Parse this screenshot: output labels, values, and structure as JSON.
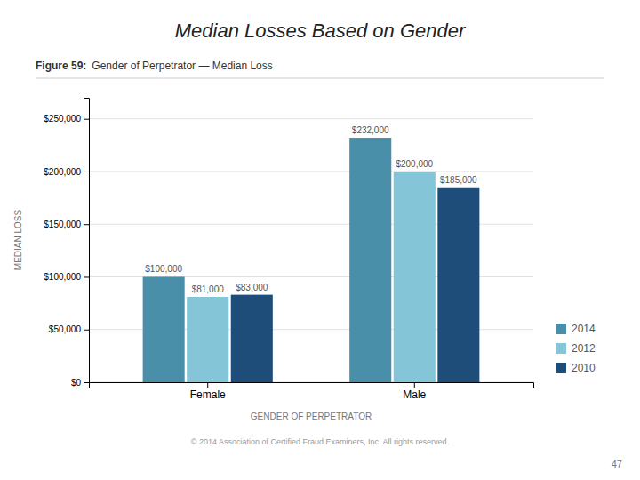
{
  "chart_data": {
    "type": "bar",
    "title": "Median Losses Based on Gender",
    "annotations": [
      "Figure 59:",
      "Gender of Perpetrator — Median Loss",
      "47",
      "© 2014 Association of Certified Fraud Examiners, Inc. All rights reserved."
    ],
    "x_label": "GENDER OF PERPETRATOR",
    "y_label": "MEDIAN LOSS",
    "categories": [
      "Female",
      "Male"
    ],
    "series": [
      {
        "name": "2014",
        "color": "#4a8faa",
        "values": [
          100000,
          232000
        ],
        "value_labels": [
          "$100,000",
          "$232,000"
        ]
      },
      {
        "name": "2012",
        "color": "#85c5d8",
        "values": [
          81000,
          200000
        ],
        "value_labels": [
          "$81,000",
          "$200,000"
        ]
      },
      {
        "name": "2010",
        "color": "#1e4d7a",
        "values": [
          83000,
          185000
        ],
        "value_labels": [
          "$83,000",
          "$185,000"
        ]
      }
    ],
    "ylim": [
      0,
      270000
    ],
    "yticks": [
      {
        "value": 0,
        "label": "$0"
      },
      {
        "value": 50000,
        "label": "$50,000"
      },
      {
        "value": 100000,
        "label": "$100,000"
      },
      {
        "value": 150000,
        "label": "$150,000"
      },
      {
        "value": 200000,
        "label": "$200,000"
      },
      {
        "value": 250000,
        "label": "$250,000"
      }
    ],
    "grid": true,
    "legend": "right",
    "data_labels": true
  }
}
